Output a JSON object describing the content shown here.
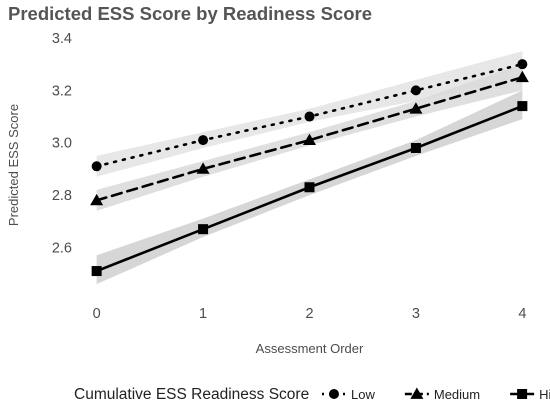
{
  "chart_data": {
    "type": "line",
    "title": "Predicted ESS Score by Readiness Score",
    "xlabel": "Assessment Order",
    "ylabel": "Predicted ESS Score",
    "x": [
      0,
      1,
      2,
      3,
      4
    ],
    "x_ticks": [
      "0",
      "1",
      "2",
      "3",
      "4"
    ],
    "xlim": [
      -0.1,
      4.1
    ],
    "y_ticks": [
      "2.6",
      "2.8",
      "3.0",
      "3.2",
      "3.4"
    ],
    "ylim": [
      2.43,
      3.4
    ],
    "grid": false,
    "legend": {
      "title": "Cumulative ESS Readiness Score",
      "placement": "bottom"
    },
    "series": [
      {
        "name": "Low",
        "marker": "circle",
        "line_style": "dotted",
        "values": [
          2.91,
          3.01,
          3.1,
          3.2,
          3.3
        ],
        "ci_lower": [
          2.87,
          2.98,
          3.08,
          3.16,
          3.25
        ],
        "ci_upper": [
          2.95,
          3.04,
          3.13,
          3.24,
          3.35
        ]
      },
      {
        "name": "Medium",
        "marker": "triangle",
        "line_style": "dashed",
        "values": [
          2.78,
          2.9,
          3.01,
          3.13,
          3.25
        ],
        "ci_lower": [
          2.74,
          2.87,
          2.99,
          3.1,
          3.2
        ],
        "ci_upper": [
          2.82,
          2.93,
          3.04,
          3.16,
          3.3
        ]
      },
      {
        "name": "High",
        "marker": "square",
        "line_style": "solid",
        "values": [
          2.51,
          2.67,
          2.83,
          2.98,
          3.14
        ],
        "ci_lower": [
          2.46,
          2.64,
          2.8,
          2.95,
          3.09
        ],
        "ci_upper": [
          2.57,
          2.71,
          2.86,
          3.01,
          3.2
        ]
      }
    ]
  }
}
